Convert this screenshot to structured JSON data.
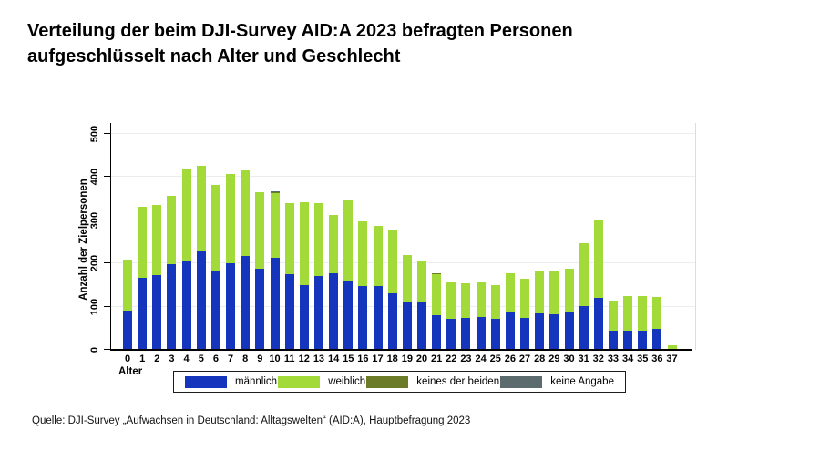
{
  "page": {
    "title_line1": "Verteilung der beim DJI-Survey AID:A 2023 befragten Personen",
    "title_line2": "aufgeschlüsselt nach Alter und Geschlecht",
    "source": "Quelle: DJI-Survey „Aufwachsen in Deutschland: Alltagswelten“ (AID:A), Hauptbefragung 2023"
  },
  "chart_data": {
    "type": "bar",
    "stacked": true,
    "title": "",
    "xlabel": "Alter",
    "ylabel": "Anzahl der Zielpersonen",
    "ylim": [
      0,
      500
    ],
    "yticks": [
      0,
      100,
      200,
      300,
      400,
      500
    ],
    "grid": true,
    "legend_position": "bottom",
    "categories": [
      "0",
      "1",
      "2",
      "3",
      "4",
      "5",
      "6",
      "7",
      "8",
      "9",
      "10",
      "11",
      "12",
      "13",
      "14",
      "15",
      "16",
      "17",
      "18",
      "19",
      "20",
      "21",
      "22",
      "23",
      "24",
      "25",
      "26",
      "27",
      "28",
      "29",
      "30",
      "31",
      "32",
      "33",
      "34",
      "35",
      "36",
      "37"
    ],
    "series": [
      {
        "name": "männlich",
        "slug": "maennlich",
        "color": "#1535bd",
        "values": [
          90,
          167,
          172,
          197,
          204,
          230,
          182,
          201,
          217,
          187,
          212,
          174,
          149,
          170,
          176,
          160,
          147,
          147,
          130,
          111,
          112,
          79,
          72,
          74,
          76,
          71,
          88,
          73,
          85,
          83,
          87,
          102,
          121,
          44,
          45,
          45,
          48,
          3
        ]
      },
      {
        "name": "weiblich",
        "slug": "weiblich",
        "color": "#a2da3a",
        "values": [
          118,
          164,
          163,
          159,
          212,
          196,
          199,
          205,
          197,
          177,
          151,
          164,
          192,
          168,
          136,
          188,
          150,
          140,
          147,
          107,
          93,
          95,
          85,
          79,
          79,
          79,
          88,
          91,
          97,
          99,
          100,
          144,
          179,
          69,
          79,
          80,
          74,
          7
        ]
      },
      {
        "name": "keines der beiden",
        "slug": "keines-der-beiden",
        "color": "#6b7b28",
        "values": [
          0,
          0,
          0,
          0,
          0,
          0,
          0,
          0,
          0,
          0,
          2,
          0,
          0,
          0,
          0,
          0,
          0,
          0,
          0,
          0,
          0,
          2,
          0,
          0,
          0,
          0,
          0,
          0,
          0,
          0,
          0,
          0,
          0,
          0,
          0,
          0,
          0,
          0
        ]
      },
      {
        "name": "keine Angabe",
        "slug": "keine-angabe",
        "color": "#5c6b6e",
        "values": [
          0,
          0,
          0,
          0,
          0,
          0,
          0,
          0,
          0,
          0,
          2,
          0,
          0,
          0,
          0,
          0,
          0,
          0,
          0,
          0,
          0,
          0,
          0,
          0,
          0,
          0,
          0,
          0,
          0,
          0,
          0,
          0,
          0,
          0,
          0,
          0,
          0,
          0
        ]
      }
    ]
  }
}
